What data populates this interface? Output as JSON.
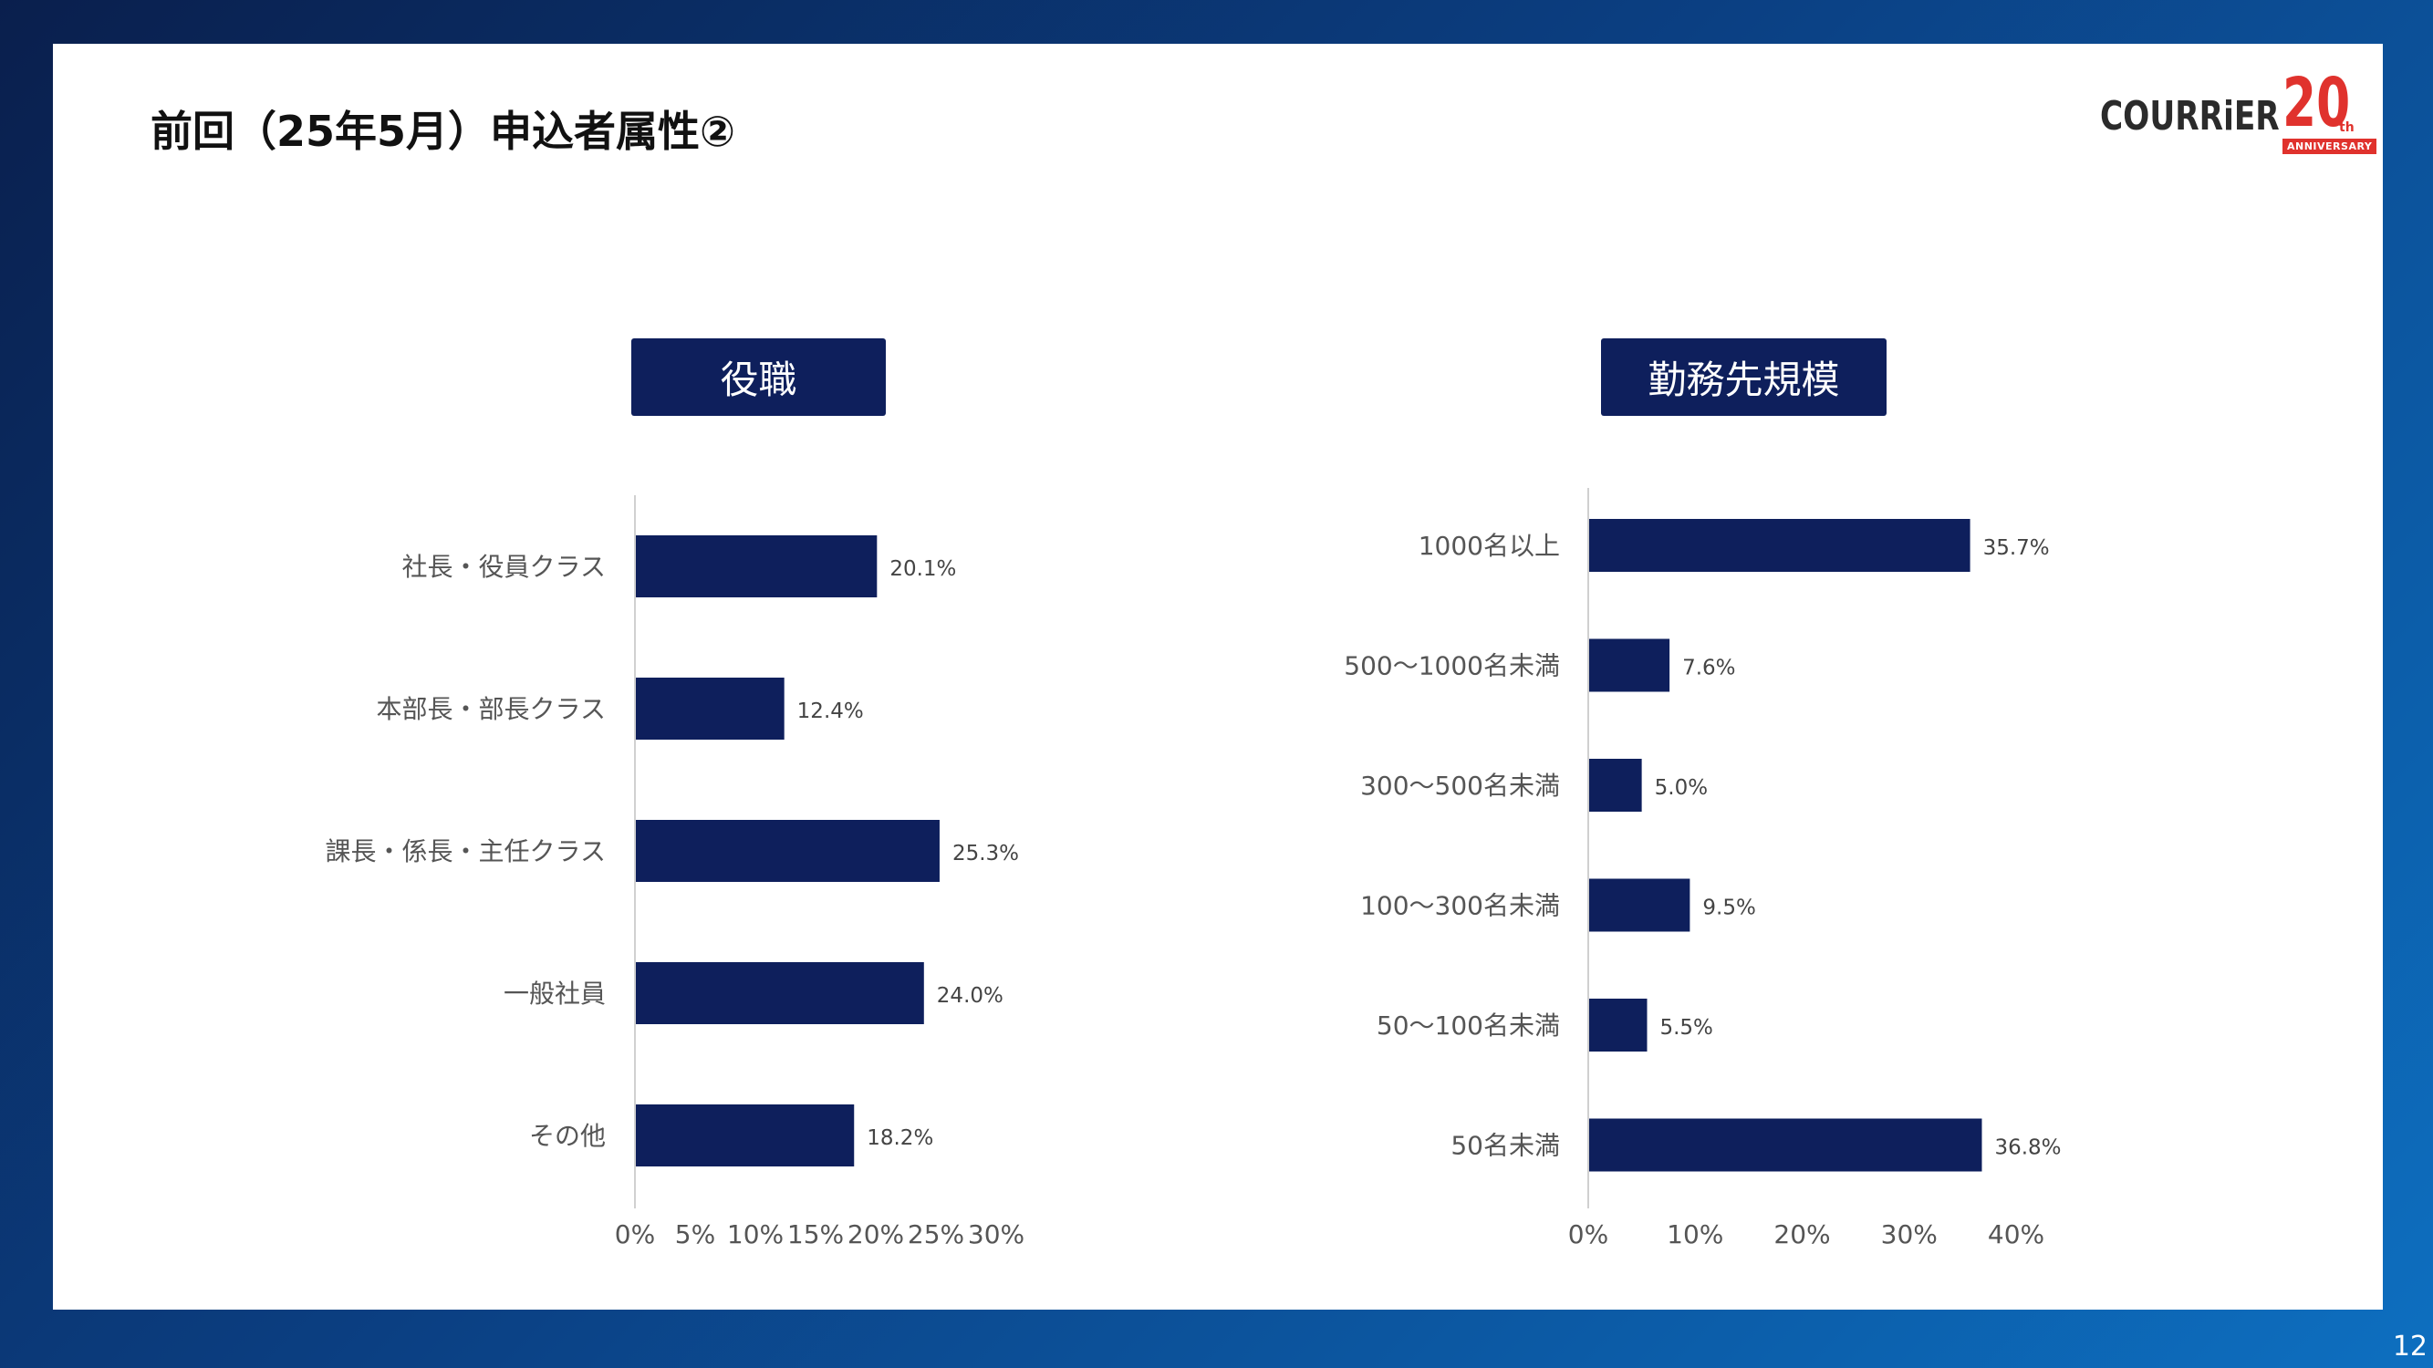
{
  "title": "前回（25年5月）申込者属性②",
  "logo": {
    "wordmark": "COURRiER",
    "anniversary_number": "20",
    "anniversary_suffix": "th",
    "anniversary_label": "ANNIVERSARY"
  },
  "page_number": "12",
  "colors": {
    "bar": "#0e1f5c",
    "header_box": "#0e1f5c",
    "logo_accent": "#e0322d"
  },
  "chart_data": [
    {
      "type": "bar",
      "orientation": "horizontal",
      "title": "役職",
      "categories": [
        "社長・役員クラス",
        "本部長・部長クラス",
        "課長・係長・主任クラス",
        "一般社員",
        "その他"
      ],
      "values": [
        20.1,
        12.4,
        25.3,
        24.0,
        18.2
      ],
      "data_labels": [
        "20.1%",
        "12.4%",
        "25.3%",
        "24.0%",
        "18.2%"
      ],
      "xlim": [
        0,
        30
      ],
      "xticks": [
        "0%",
        "5%",
        "10%",
        "15%",
        "20%",
        "25%",
        "30%"
      ],
      "grid": false
    },
    {
      "type": "bar",
      "orientation": "horizontal",
      "title": "勤務先規模",
      "categories": [
        "1000名以上",
        "500〜1000名未満",
        "300〜500名未満",
        "100〜300名未満",
        "50〜100名未満",
        "50名未満"
      ],
      "values": [
        35.7,
        7.6,
        5.0,
        9.5,
        5.5,
        36.8
      ],
      "data_labels": [
        "35.7%",
        "7.6%",
        "5.0%",
        "9.5%",
        "5.5%",
        "36.8%"
      ],
      "xlim": [
        0,
        40
      ],
      "xticks": [
        "0%",
        "10%",
        "20%",
        "30%",
        "40%"
      ],
      "grid": false
    }
  ]
}
